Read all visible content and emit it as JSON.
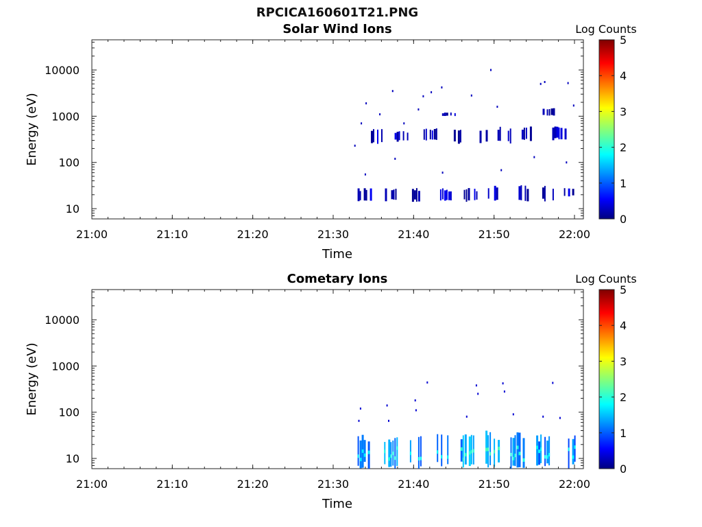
{
  "figure_title": "RPCICA160601T21.PNG",
  "chart_data": [
    {
      "type": "heatmap",
      "title": "Solar Wind Ions",
      "xlabel": "Time",
      "ylabel": "Energy (eV)",
      "x_ticks": [
        "21:00",
        "21:10",
        "21:20",
        "21:30",
        "21:40",
        "21:50",
        "22:00"
      ],
      "x_range": [
        "21:00",
        "22:00"
      ],
      "y_ticks": [
        10,
        100,
        1000,
        10000
      ],
      "y_scale": "log",
      "ylim": [
        6,
        45000
      ],
      "colorbar": {
        "label": "Log Counts",
        "range": [
          0,
          5
        ],
        "ticks": [
          0,
          1,
          2,
          3,
          4,
          5
        ]
      },
      "bursts": [
        {
          "time": "21:33.8",
          "energy_range": [
            14,
            28
          ],
          "log_counts": 0.3
        },
        {
          "time": "21:35.2",
          "energy_range": [
            250,
            550
          ],
          "log_counts": 0.3
        },
        {
          "time": "21:37.2",
          "energy_range": [
            14,
            28
          ],
          "log_counts": 0.3
        },
        {
          "time": "21:38.4",
          "energy_range": [
            280,
            500
          ],
          "log_counts": 0.3
        },
        {
          "time": "21:40.3",
          "energy_range": [
            14,
            28
          ],
          "log_counts": 0.3
        },
        {
          "time": "21:42.0",
          "energy_range": [
            300,
            550
          ],
          "log_counts": 0.3
        },
        {
          "time": "21:43.8",
          "energy_range": [
            14,
            28
          ],
          "log_counts": 0.3
        },
        {
          "time": "21:44.3",
          "energy_range": [
            1000,
            1200
          ],
          "log_counts": 0.3
        },
        {
          "time": "21:45.5",
          "energy_range": [
            250,
            550
          ],
          "log_counts": 0.3
        },
        {
          "time": "21:47.0",
          "energy_range": [
            14,
            28
          ],
          "log_counts": 0.3
        },
        {
          "time": "21:48.2",
          "energy_range": [
            250,
            600
          ],
          "log_counts": 0.3
        },
        {
          "time": "21:50.0",
          "energy_range": [
            14,
            32
          ],
          "log_counts": 0.3
        },
        {
          "time": "21:51.2",
          "energy_range": [
            250,
            600
          ],
          "log_counts": 0.3
        },
        {
          "time": "21:53.3",
          "energy_range": [
            14,
            32
          ],
          "log_counts": 0.3
        },
        {
          "time": "21:54.2",
          "energy_range": [
            280,
            600
          ],
          "log_counts": 0.3
        },
        {
          "time": "21:56.5",
          "energy_range": [
            14,
            32
          ],
          "log_counts": 0.3
        },
        {
          "time": "21:56.8",
          "energy_range": [
            1000,
            1500
          ],
          "log_counts": 0.3
        },
        {
          "time": "21:58.0",
          "energy_range": [
            300,
            600
          ],
          "log_counts": 0.3
        },
        {
          "time": "21:59.2",
          "energy_range": [
            18,
            28
          ],
          "log_counts": 0.3
        }
      ],
      "isolated_counts": [
        {
          "time": "21:32.7",
          "energy": 230,
          "log_counts": 0.2
        },
        {
          "time": "21:33.5",
          "energy": 700,
          "log_counts": 0.2
        },
        {
          "time": "21:34.1",
          "energy": 1900,
          "log_counts": 0.2
        },
        {
          "time": "21:34.0",
          "energy": 55,
          "log_counts": 0.2
        },
        {
          "time": "21:35.8",
          "energy": 1100,
          "log_counts": 0.2
        },
        {
          "time": "21:37.4",
          "energy": 3500,
          "log_counts": 0.2
        },
        {
          "time": "21:37.7",
          "energy": 120,
          "log_counts": 0.2
        },
        {
          "time": "21:38.8",
          "energy": 700,
          "log_counts": 0.2
        },
        {
          "time": "21:40.6",
          "energy": 1400,
          "log_counts": 0.2
        },
        {
          "time": "21:41.2",
          "energy": 2700,
          "log_counts": 0.2
        },
        {
          "time": "21:42.2",
          "energy": 3300,
          "log_counts": 0.2
        },
        {
          "time": "21:43.5",
          "energy": 4200,
          "log_counts": 0.2
        },
        {
          "time": "21:43.6",
          "energy": 60,
          "log_counts": 0.2
        },
        {
          "time": "21:47.2",
          "energy": 2800,
          "log_counts": 0.2
        },
        {
          "time": "21:49.6",
          "energy": 10000,
          "log_counts": 0.2
        },
        {
          "time": "21:50.4",
          "energy": 1600,
          "log_counts": 0.2
        },
        {
          "time": "21:50.9",
          "energy": 68,
          "log_counts": 0.2
        },
        {
          "time": "21:55.0",
          "energy": 130,
          "log_counts": 0.2
        },
        {
          "time": "21:55.8",
          "energy": 5000,
          "log_counts": 0.2
        },
        {
          "time": "21:56.3",
          "energy": 5500,
          "log_counts": 0.2
        },
        {
          "time": "21:59.0",
          "energy": 100,
          "log_counts": 0.2
        },
        {
          "time": "21:59.2",
          "energy": 5200,
          "log_counts": 0.2
        },
        {
          "time": "21:59.9",
          "energy": 1700,
          "log_counts": 0.2
        }
      ]
    },
    {
      "type": "heatmap",
      "title": "Cometary Ions",
      "xlabel": "Time",
      "ylabel": "Energy (eV)",
      "x_ticks": [
        "21:00",
        "21:10",
        "21:20",
        "21:30",
        "21:40",
        "21:50",
        "22:00"
      ],
      "x_range": [
        "21:00",
        "22:00"
      ],
      "y_ticks": [
        10,
        100,
        1000,
        10000
      ],
      "y_scale": "log",
      "ylim": [
        6,
        45000
      ],
      "colorbar": {
        "label": "Log Counts",
        "range": [
          0,
          5
        ],
        "ticks": [
          0,
          1,
          2,
          3,
          4,
          5
        ]
      },
      "bursts": [
        {
          "time": "21:33.8",
          "energy_range": [
            6,
            35
          ],
          "log_counts": 1.1
        },
        {
          "time": "21:37.1",
          "energy_range": [
            6,
            35
          ],
          "log_counts": 1.3
        },
        {
          "time": "21:40.3",
          "energy_range": [
            6,
            38
          ],
          "log_counts": 1.2
        },
        {
          "time": "21:43.4",
          "energy_range": [
            6,
            35
          ],
          "log_counts": 1.2
        },
        {
          "time": "21:46.6",
          "energy_range": [
            6,
            38
          ],
          "log_counts": 1.4
        },
        {
          "time": "21:49.7",
          "energy_range": [
            6,
            40
          ],
          "log_counts": 1.5
        },
        {
          "time": "21:52.8",
          "energy_range": [
            6,
            40
          ],
          "log_counts": 1.3
        },
        {
          "time": "21:56.0",
          "energy_range": [
            6,
            35
          ],
          "log_counts": 1.2
        },
        {
          "time": "21:59.2",
          "energy_range": [
            6,
            35
          ],
          "log_counts": 1.2
        }
      ],
      "isolated_counts": [
        {
          "time": "21:33.4",
          "energy": 120,
          "log_counts": 0.3
        },
        {
          "time": "21:33.2",
          "energy": 65,
          "log_counts": 0.3
        },
        {
          "time": "21:36.7",
          "energy": 140,
          "log_counts": 0.3
        },
        {
          "time": "21:36.9",
          "energy": 65,
          "log_counts": 0.3
        },
        {
          "time": "21:40.2",
          "energy": 180,
          "log_counts": 0.3
        },
        {
          "time": "21:40.3",
          "energy": 110,
          "log_counts": 0.3
        },
        {
          "time": "21:41.7",
          "energy": 440,
          "log_counts": 0.3
        },
        {
          "time": "21:46.6",
          "energy": 80,
          "log_counts": 0.3
        },
        {
          "time": "21:47.8",
          "energy": 380,
          "log_counts": 0.3
        },
        {
          "time": "21:48.0",
          "energy": 250,
          "log_counts": 0.3
        },
        {
          "time": "21:51.1",
          "energy": 420,
          "log_counts": 0.3
        },
        {
          "time": "21:51.3",
          "energy": 280,
          "log_counts": 0.3
        },
        {
          "time": "21:52.4",
          "energy": 90,
          "log_counts": 0.3
        },
        {
          "time": "21:56.1",
          "energy": 80,
          "log_counts": 0.3
        },
        {
          "time": "21:57.3",
          "energy": 430,
          "log_counts": 0.3
        },
        {
          "time": "21:58.2",
          "energy": 75,
          "log_counts": 0.3
        }
      ]
    }
  ]
}
